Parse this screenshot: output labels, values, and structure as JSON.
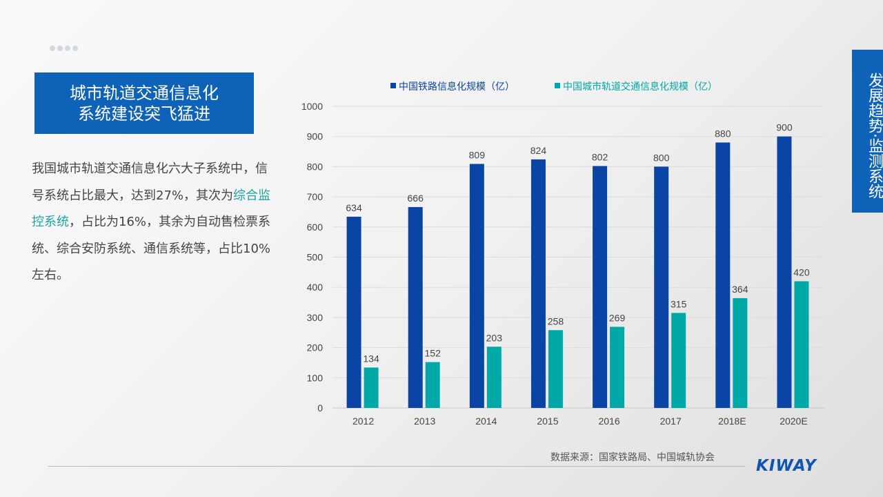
{
  "header": {
    "title_line1": "城市轨道交通信息化",
    "title_line2": "系统建设突飞猛进"
  },
  "body": {
    "text_before": "我国城市轨道交通信息化六大子系统中，信号系统占比最大，达到27%，其次为",
    "highlight": "综合监控系统",
    "text_after": "，占比为16%，其余为自动售检票系统、综合安防系统、通信系统等，占比10%左右。"
  },
  "side_tab": "发展趋势·监测系统",
  "source": "数据来源：国家铁路局、中国城轨协会",
  "logo": "KIWAY",
  "colors": {
    "accent": "#0e62b8",
    "series1": "#0a44a4",
    "series2": "#00a8a8",
    "highlight": "#1fa3a3"
  },
  "chart_data": {
    "type": "bar",
    "categories": [
      "2012",
      "2013",
      "2014",
      "2015",
      "2016",
      "2017",
      "2018E",
      "2020E"
    ],
    "series": [
      {
        "name": "中国铁路信息化规模（亿）",
        "values": [
          634,
          666,
          809,
          824,
          802,
          800,
          880,
          900
        ]
      },
      {
        "name": "中国城市轨道交通信息化规模（亿）",
        "values": [
          134,
          152,
          203,
          258,
          269,
          315,
          364,
          420
        ]
      }
    ],
    "ylim": [
      0,
      1000
    ],
    "yticks": [
      0,
      100,
      200,
      300,
      400,
      500,
      600,
      700,
      800,
      900,
      1000
    ],
    "grid": true,
    "legend": "top",
    "data_labels": true
  }
}
